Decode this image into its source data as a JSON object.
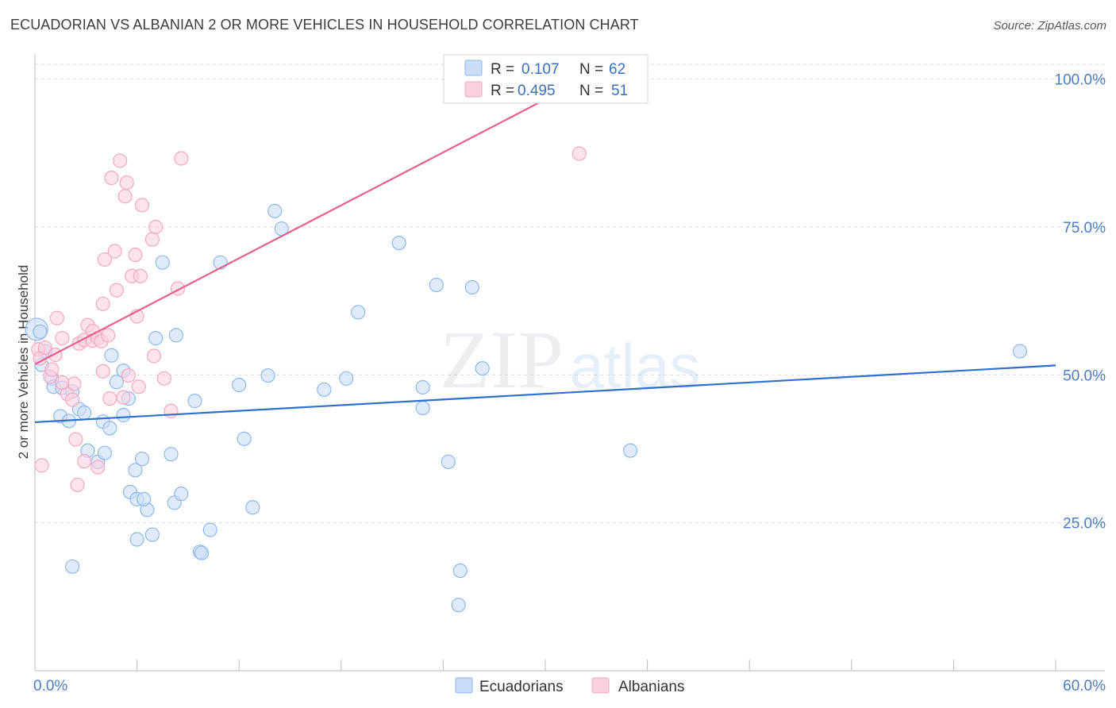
{
  "title": "ECUADORIAN VS ALBANIAN 2 OR MORE VEHICLES IN HOUSEHOLD CORRELATION CHART",
  "source": "Source: ZipAtlas.com",
  "watermark": {
    "zip": "ZIP",
    "atlas": "atlas"
  },
  "legend": {
    "r_label": "R =",
    "n_label": "N =",
    "rows": [
      {
        "name": "Ecuadorians",
        "r": "0.107",
        "n": "62"
      },
      {
        "name": "Albanians",
        "r": "0.495",
        "n": "51"
      }
    ]
  },
  "chart_data": {
    "type": "scatter",
    "title": "ECUADORIAN VS ALBANIAN 2 OR MORE VEHICLES IN HOUSEHOLD CORRELATION CHART",
    "xlabel": "",
    "ylabel": "2 or more Vehicles in Household",
    "xlim": [
      0,
      60
    ],
    "ylim": [
      0,
      102.5
    ],
    "x_tick_labels": [
      "0.0%",
      "60.0%"
    ],
    "y_ticks": [
      {
        "value": 100,
        "label": "100.0%"
      },
      {
        "value": 75,
        "label": "75.0%"
      },
      {
        "value": 50,
        "label": "50.0%"
      },
      {
        "value": 25,
        "label": "25.0%"
      }
    ],
    "series": [
      {
        "name": "Ecuadorians",
        "color": "#8fb8ea",
        "fill": "#c9ddf6",
        "line_color": "#2f6fcb",
        "trend": {
          "x0": 0,
          "y0": 42.0,
          "x1": 60,
          "y1": 51.6
        },
        "points": [
          [
            0.1,
            57.7
          ],
          [
            0.3,
            57.3
          ],
          [
            0.6,
            54.0
          ],
          [
            0.4,
            51.7
          ],
          [
            1.0,
            49.4
          ],
          [
            1.1,
            48.0
          ],
          [
            1.6,
            47.8
          ],
          [
            2.2,
            47.2
          ],
          [
            2.6,
            44.2
          ],
          [
            2.9,
            43.6
          ],
          [
            1.5,
            43.0
          ],
          [
            2.0,
            42.2
          ],
          [
            4.0,
            42.1
          ],
          [
            4.4,
            41.0
          ],
          [
            3.1,
            37.2
          ],
          [
            3.7,
            35.3
          ],
          [
            4.1,
            36.8
          ],
          [
            4.5,
            53.3
          ],
          [
            4.8,
            48.8
          ],
          [
            5.5,
            46.0
          ],
          [
            5.2,
            43.2
          ],
          [
            5.2,
            50.7
          ],
          [
            5.9,
            33.9
          ],
          [
            6.3,
            35.8
          ],
          [
            5.6,
            30.2
          ],
          [
            6.0,
            29.0
          ],
          [
            6.6,
            27.2
          ],
          [
            6.4,
            29.0
          ],
          [
            6.9,
            23.0
          ],
          [
            6.0,
            22.2
          ],
          [
            7.1,
            56.2
          ],
          [
            7.5,
            69.0
          ],
          [
            8.3,
            56.7
          ],
          [
            8.0,
            36.6
          ],
          [
            8.2,
            28.4
          ],
          [
            8.6,
            29.9
          ],
          [
            9.4,
            45.6
          ],
          [
            9.7,
            20.1
          ],
          [
            10.3,
            23.8
          ],
          [
            10.9,
            69.0
          ],
          [
            12.0,
            48.3
          ],
          [
            12.3,
            39.2
          ],
          [
            12.8,
            27.6
          ],
          [
            13.7,
            49.9
          ],
          [
            14.1,
            77.7
          ],
          [
            14.5,
            74.7
          ],
          [
            17.0,
            47.5
          ],
          [
            18.3,
            49.4
          ],
          [
            19.0,
            60.6
          ],
          [
            21.4,
            72.3
          ],
          [
            22.8,
            47.9
          ],
          [
            22.8,
            44.4
          ],
          [
            23.6,
            65.2
          ],
          [
            24.3,
            35.3
          ],
          [
            25.0,
            16.9
          ],
          [
            24.9,
            11.1
          ],
          [
            25.7,
            64.8
          ],
          [
            26.3,
            51.1
          ],
          [
            35.0,
            37.2
          ],
          [
            57.9,
            54.0
          ],
          [
            9.8,
            19.9
          ],
          [
            2.2,
            17.6
          ]
        ]
      },
      {
        "name": "Albanians",
        "color": "#f4a7c1",
        "fill": "#fbd0df",
        "line_color": "#e8608c",
        "trend": {
          "x0": 0,
          "y0": 51.8,
          "x1": 32.3,
          "y1": 100.0
        },
        "points": [
          [
            0.2,
            54.3
          ],
          [
            0.3,
            52.8
          ],
          [
            0.4,
            34.7
          ],
          [
            0.6,
            54.6
          ],
          [
            0.9,
            49.7
          ],
          [
            1.2,
            53.4
          ],
          [
            1.0,
            50.9
          ],
          [
            1.3,
            59.6
          ],
          [
            1.6,
            56.2
          ],
          [
            1.9,
            46.8
          ],
          [
            2.2,
            45.8
          ],
          [
            2.3,
            48.5
          ],
          [
            2.4,
            39.1
          ],
          [
            2.5,
            31.4
          ],
          [
            2.6,
            55.3
          ],
          [
            2.9,
            55.9
          ],
          [
            3.1,
            58.4
          ],
          [
            3.4,
            57.4
          ],
          [
            3.4,
            55.8
          ],
          [
            3.7,
            56.2
          ],
          [
            3.7,
            34.4
          ],
          [
            3.9,
            55.7
          ],
          [
            4.0,
            50.6
          ],
          [
            4.0,
            62.0
          ],
          [
            4.1,
            69.5
          ],
          [
            4.3,
            56.7
          ],
          [
            4.4,
            46.0
          ],
          [
            4.5,
            83.3
          ],
          [
            4.7,
            70.9
          ],
          [
            4.8,
            64.3
          ],
          [
            5.0,
            86.2
          ],
          [
            5.2,
            46.2
          ],
          [
            5.3,
            80.2
          ],
          [
            5.4,
            82.5
          ],
          [
            5.5,
            49.9
          ],
          [
            5.7,
            66.7
          ],
          [
            5.9,
            70.3
          ],
          [
            6.0,
            59.9
          ],
          [
            6.2,
            66.7
          ],
          [
            6.3,
            78.7
          ],
          [
            6.9,
            72.9
          ],
          [
            7.0,
            53.2
          ],
          [
            7.1,
            75.0
          ],
          [
            7.6,
            49.4
          ],
          [
            8.0,
            43.9
          ],
          [
            8.4,
            64.6
          ],
          [
            8.6,
            86.6
          ],
          [
            2.9,
            35.4
          ],
          [
            6.1,
            48.0
          ],
          [
            1.6,
            48.7
          ],
          [
            32.0,
            87.4
          ]
        ]
      }
    ]
  }
}
